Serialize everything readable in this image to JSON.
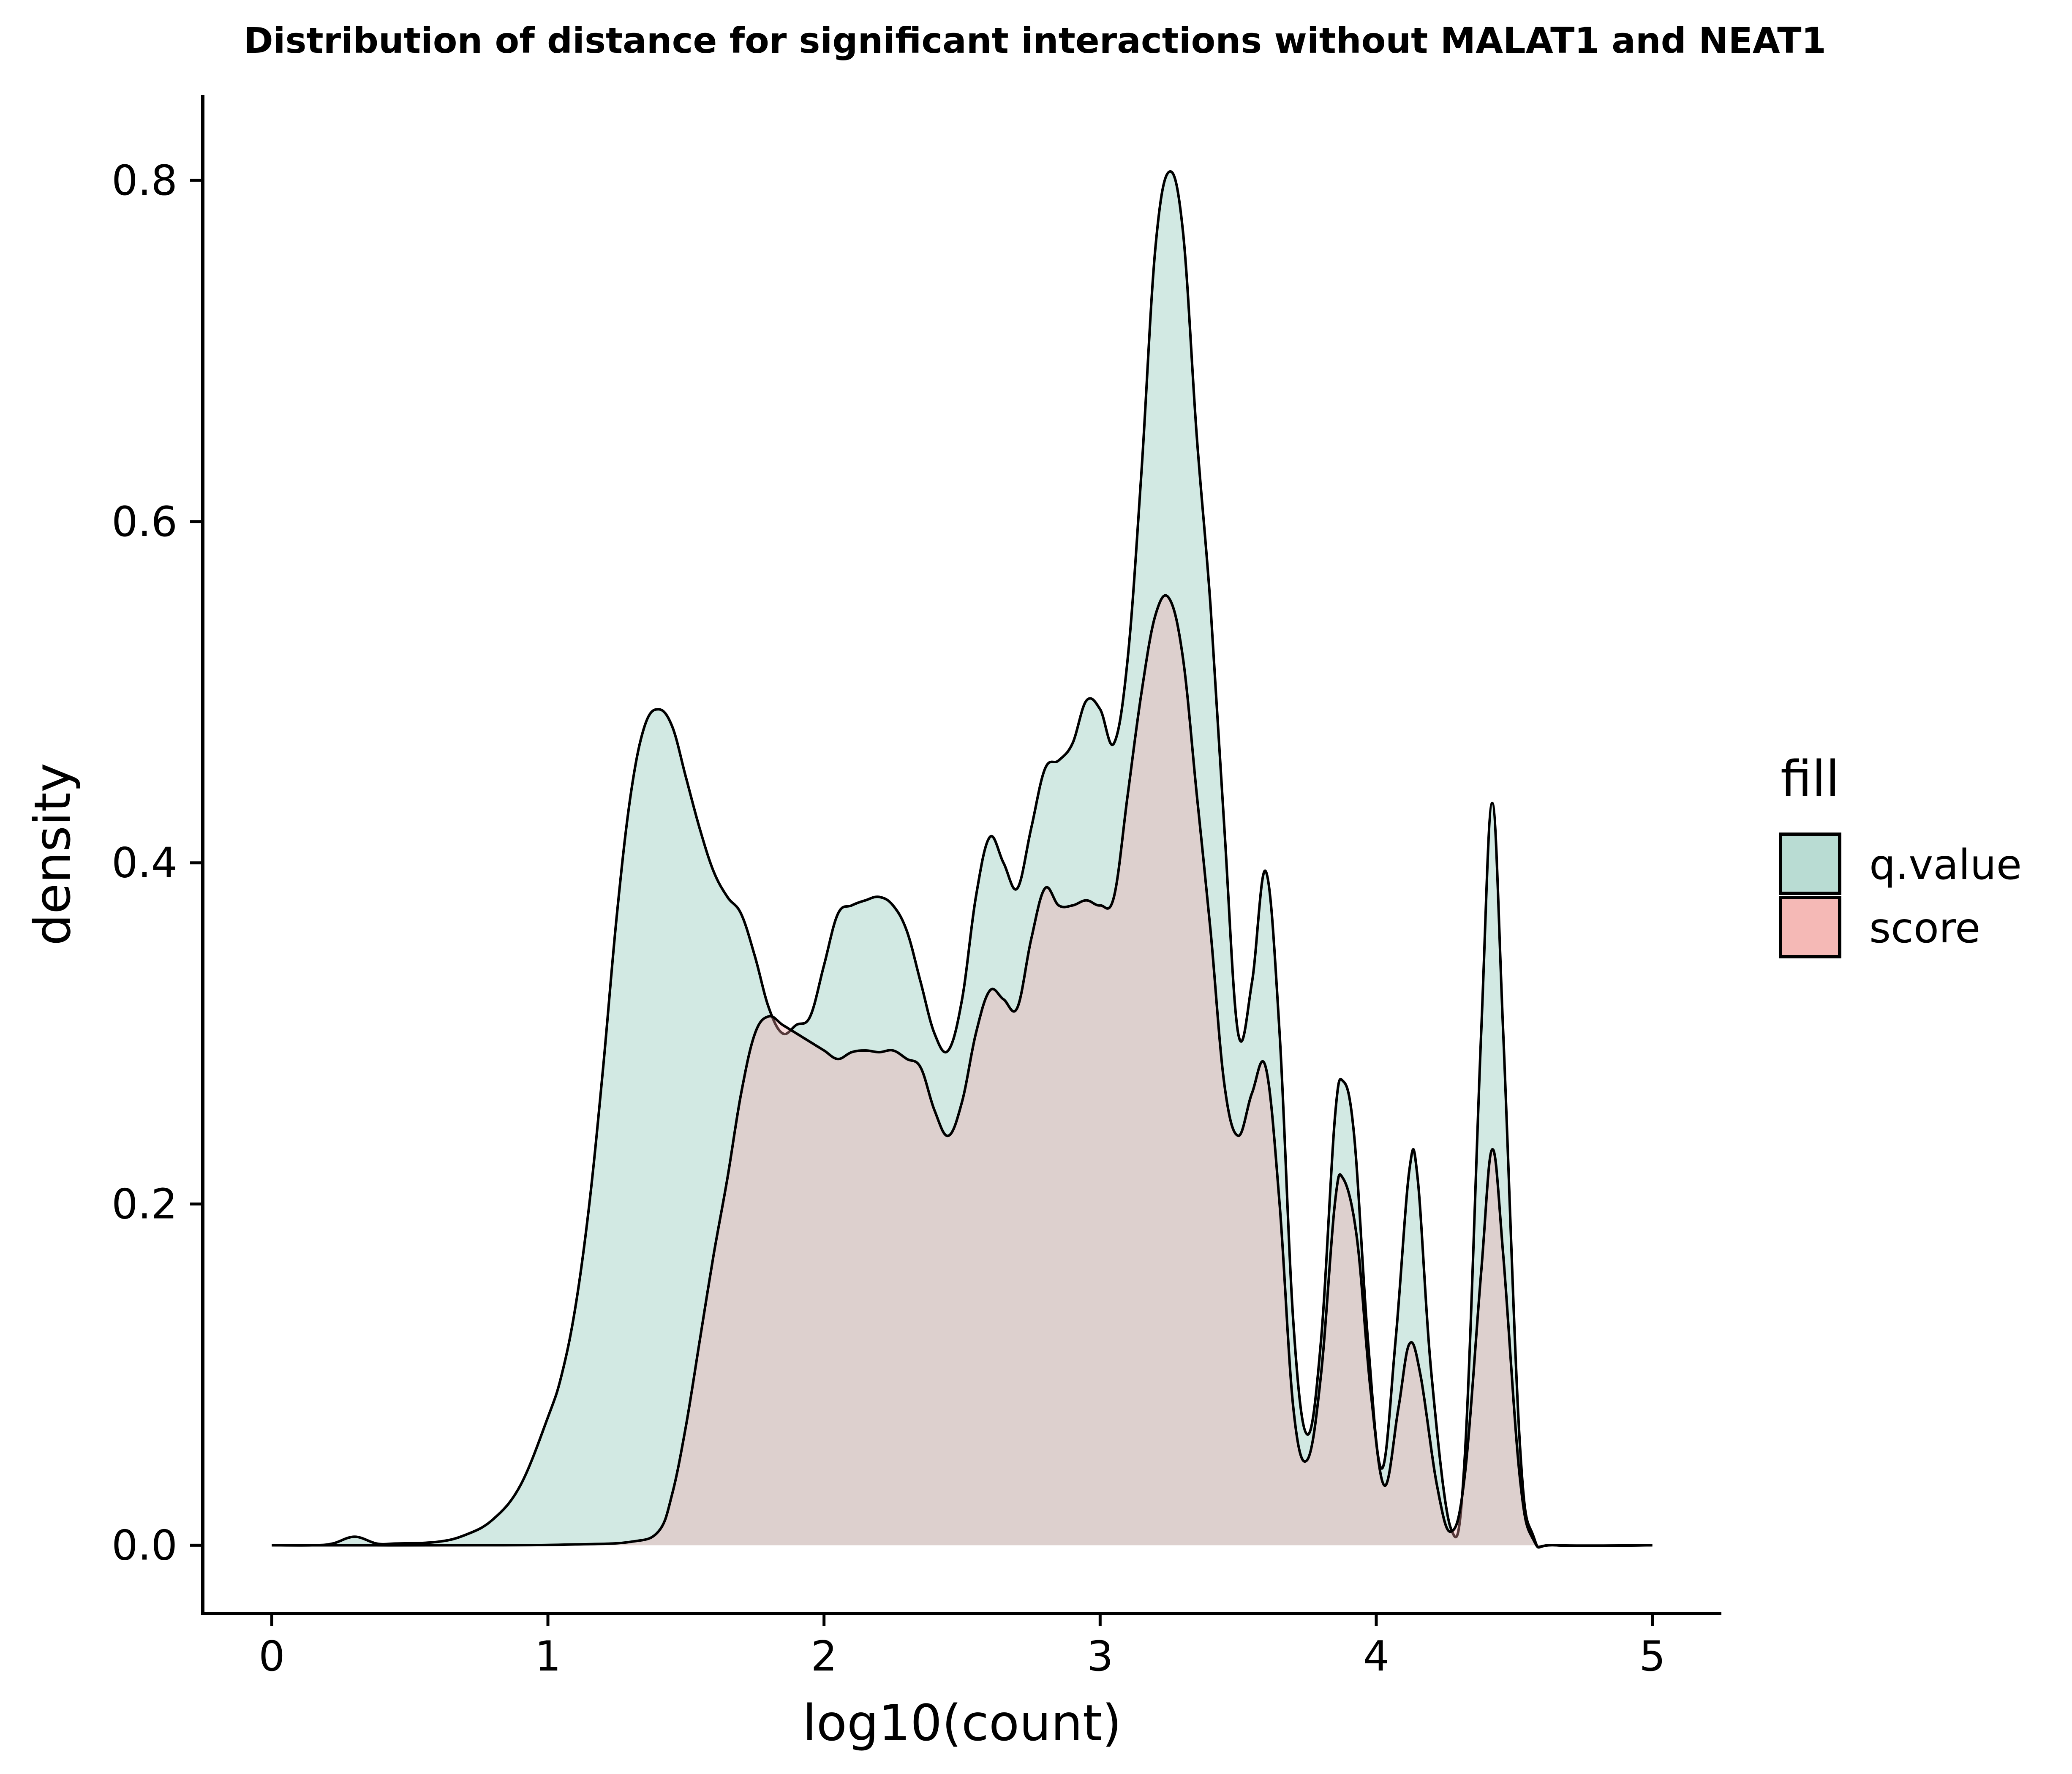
{
  "chart_data": {
    "type": "area",
    "title": "Distribution of distance for significant interactions without MALAT1 and NEAT1",
    "xlabel": "log10(count)",
    "ylabel": "density",
    "xlim": [
      -0.25,
      5.25
    ],
    "ylim": [
      -0.04,
      0.85
    ],
    "x_ticks": [
      0,
      1,
      2,
      3,
      4,
      5
    ],
    "x_tick_labels": [
      "0",
      "1",
      "2",
      "3",
      "4",
      "5"
    ],
    "y_ticks": [
      0.0,
      0.2,
      0.4,
      0.6,
      0.8
    ],
    "y_tick_labels": [
      "0.0",
      "0.2",
      "0.4",
      "0.6",
      "0.8"
    ],
    "grid": false,
    "legend": {
      "title": "fill",
      "position": "right",
      "entries": [
        {
          "label": "q.value",
          "color": "#b9dcd3"
        },
        {
          "label": "score",
          "color": "#f5b9b6"
        }
      ]
    },
    "series": [
      {
        "name": "q.value",
        "fill": "#8fc8b8",
        "fill_opacity": 0.4,
        "stroke": "#000000",
        "points": [
          [
            0.0,
            0.0
          ],
          [
            0.15,
            0.0
          ],
          [
            0.22,
            0.001
          ],
          [
            0.3,
            0.005
          ],
          [
            0.38,
            0.001
          ],
          [
            0.45,
            0.001
          ],
          [
            0.6,
            0.002
          ],
          [
            0.7,
            0.006
          ],
          [
            0.8,
            0.015
          ],
          [
            0.9,
            0.035
          ],
          [
            1.0,
            0.075
          ],
          [
            1.05,
            0.1
          ],
          [
            1.1,
            0.14
          ],
          [
            1.15,
            0.2
          ],
          [
            1.2,
            0.28
          ],
          [
            1.25,
            0.37
          ],
          [
            1.3,
            0.44
          ],
          [
            1.35,
            0.48
          ],
          [
            1.4,
            0.49
          ],
          [
            1.45,
            0.48
          ],
          [
            1.5,
            0.45
          ],
          [
            1.55,
            0.42
          ],
          [
            1.6,
            0.395
          ],
          [
            1.65,
            0.38
          ],
          [
            1.7,
            0.37
          ],
          [
            1.75,
            0.345
          ],
          [
            1.8,
            0.315
          ],
          [
            1.85,
            0.3
          ],
          [
            1.9,
            0.305
          ],
          [
            1.95,
            0.31
          ],
          [
            2.0,
            0.34
          ],
          [
            2.05,
            0.37
          ],
          [
            2.1,
            0.375
          ],
          [
            2.15,
            0.378
          ],
          [
            2.2,
            0.38
          ],
          [
            2.25,
            0.375
          ],
          [
            2.3,
            0.36
          ],
          [
            2.35,
            0.33
          ],
          [
            2.4,
            0.3
          ],
          [
            2.45,
            0.29
          ],
          [
            2.5,
            0.32
          ],
          [
            2.55,
            0.38
          ],
          [
            2.6,
            0.415
          ],
          [
            2.65,
            0.4
          ],
          [
            2.7,
            0.385
          ],
          [
            2.75,
            0.42
          ],
          [
            2.8,
            0.455
          ],
          [
            2.85,
            0.46
          ],
          [
            2.9,
            0.47
          ],
          [
            2.95,
            0.495
          ],
          [
            3.0,
            0.49
          ],
          [
            3.05,
            0.47
          ],
          [
            3.1,
            0.52
          ],
          [
            3.15,
            0.63
          ],
          [
            3.2,
            0.76
          ],
          [
            3.25,
            0.805
          ],
          [
            3.3,
            0.77
          ],
          [
            3.35,
            0.65
          ],
          [
            3.4,
            0.55
          ],
          [
            3.45,
            0.42
          ],
          [
            3.5,
            0.3
          ],
          [
            3.55,
            0.33
          ],
          [
            3.6,
            0.395
          ],
          [
            3.65,
            0.3
          ],
          [
            3.7,
            0.13
          ],
          [
            3.75,
            0.065
          ],
          [
            3.8,
            0.12
          ],
          [
            3.85,
            0.25
          ],
          [
            3.88,
            0.272
          ],
          [
            3.92,
            0.24
          ],
          [
            3.97,
            0.12
          ],
          [
            4.02,
            0.045
          ],
          [
            4.07,
            0.12
          ],
          [
            4.12,
            0.22
          ],
          [
            4.15,
            0.215
          ],
          [
            4.2,
            0.1
          ],
          [
            4.27,
            0.01
          ],
          [
            4.32,
            0.05
          ],
          [
            4.38,
            0.3
          ],
          [
            4.42,
            0.435
          ],
          [
            4.46,
            0.3
          ],
          [
            4.52,
            0.06
          ],
          [
            4.57,
            0.005
          ],
          [
            4.65,
            0.0
          ],
          [
            5.0,
            0.0
          ]
        ]
      },
      {
        "name": "score",
        "fill": "#f4a3a7",
        "fill_opacity": 0.35,
        "stroke": "#000000",
        "points": [
          [
            0.0,
            0.0
          ],
          [
            0.8,
            0.0
          ],
          [
            1.1,
            0.0005
          ],
          [
            1.3,
            0.002
          ],
          [
            1.4,
            0.008
          ],
          [
            1.45,
            0.03
          ],
          [
            1.5,
            0.07
          ],
          [
            1.55,
            0.12
          ],
          [
            1.6,
            0.17
          ],
          [
            1.65,
            0.215
          ],
          [
            1.7,
            0.265
          ],
          [
            1.75,
            0.3
          ],
          [
            1.8,
            0.31
          ],
          [
            1.85,
            0.305
          ],
          [
            1.9,
            0.3
          ],
          [
            1.95,
            0.295
          ],
          [
            2.0,
            0.29
          ],
          [
            2.05,
            0.285
          ],
          [
            2.1,
            0.289
          ],
          [
            2.15,
            0.29
          ],
          [
            2.2,
            0.289
          ],
          [
            2.25,
            0.29
          ],
          [
            2.3,
            0.285
          ],
          [
            2.35,
            0.28
          ],
          [
            2.4,
            0.255
          ],
          [
            2.45,
            0.24
          ],
          [
            2.5,
            0.26
          ],
          [
            2.55,
            0.3
          ],
          [
            2.6,
            0.325
          ],
          [
            2.65,
            0.32
          ],
          [
            2.7,
            0.315
          ],
          [
            2.75,
            0.355
          ],
          [
            2.8,
            0.385
          ],
          [
            2.85,
            0.375
          ],
          [
            2.9,
            0.375
          ],
          [
            2.95,
            0.378
          ],
          [
            3.0,
            0.375
          ],
          [
            3.05,
            0.38
          ],
          [
            3.1,
            0.44
          ],
          [
            3.15,
            0.5
          ],
          [
            3.2,
            0.545
          ],
          [
            3.25,
            0.555
          ],
          [
            3.3,
            0.52
          ],
          [
            3.35,
            0.44
          ],
          [
            3.4,
            0.36
          ],
          [
            3.45,
            0.27
          ],
          [
            3.5,
            0.24
          ],
          [
            3.55,
            0.265
          ],
          [
            3.6,
            0.28
          ],
          [
            3.65,
            0.2
          ],
          [
            3.7,
            0.08
          ],
          [
            3.75,
            0.05
          ],
          [
            3.8,
            0.1
          ],
          [
            3.85,
            0.2
          ],
          [
            3.88,
            0.215
          ],
          [
            3.93,
            0.18
          ],
          [
            3.98,
            0.09
          ],
          [
            4.03,
            0.035
          ],
          [
            4.08,
            0.08
          ],
          [
            4.12,
            0.118
          ],
          [
            4.16,
            0.1
          ],
          [
            4.22,
            0.035
          ],
          [
            4.27,
            0.008
          ],
          [
            4.32,
            0.04
          ],
          [
            4.38,
            0.16
          ],
          [
            4.42,
            0.232
          ],
          [
            4.46,
            0.17
          ],
          [
            4.52,
            0.04
          ],
          [
            4.57,
            0.003
          ],
          [
            4.65,
            0.0
          ],
          [
            5.0,
            0.0
          ]
        ]
      }
    ]
  }
}
